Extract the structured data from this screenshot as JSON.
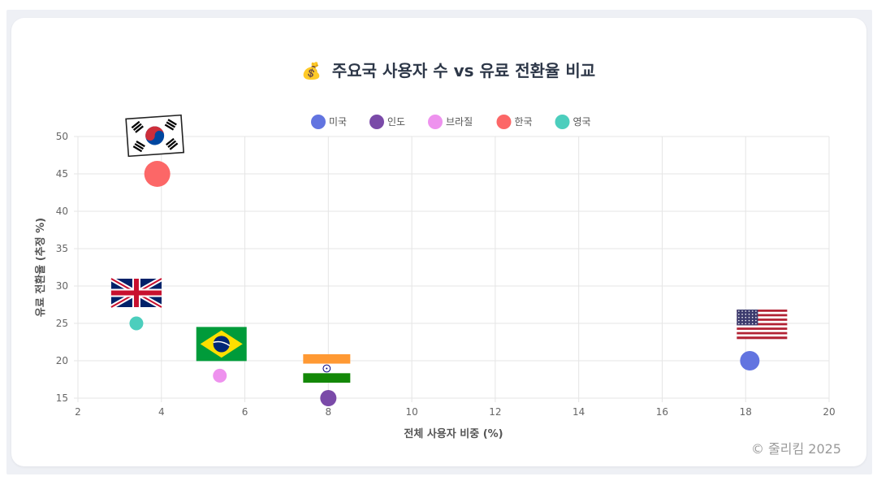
{
  "chart_data": {
    "type": "scatter",
    "title": "주요국 사용자 수 vs 유료 전환율 비교",
    "title_icon": "💰",
    "xlabel": "전체 사용자 비중 (%)",
    "ylabel": "유료 전환율 (추정 %)",
    "xlim": [
      2,
      20
    ],
    "ylim": [
      15,
      50
    ],
    "x_ticks": [
      2,
      4,
      6,
      8,
      10,
      12,
      14,
      16,
      18,
      20
    ],
    "y_ticks": [
      15,
      20,
      25,
      30,
      35,
      40,
      45,
      50
    ],
    "grid": true,
    "legend_position": "top-center",
    "series": [
      {
        "name": "미국",
        "color": "#6274e0",
        "x": 18.1,
        "y": 20,
        "flag": "us-flag-icon"
      },
      {
        "name": "인도",
        "color": "#7a4aa8",
        "x": 8.0,
        "y": 15,
        "flag": "india-flag-icon"
      },
      {
        "name": "브라질",
        "color": "#ee92ee",
        "x": 5.4,
        "y": 18,
        "flag": "brazil-flag-icon"
      },
      {
        "name": "한국",
        "color": "#fc6767",
        "x": 3.9,
        "y": 45,
        "flag": "korea-flag-icon"
      },
      {
        "name": "영국",
        "color": "#4ccebd",
        "x": 3.4,
        "y": 25,
        "flag": "uk-flag-icon"
      }
    ]
  },
  "watermark": "© 줄리킴 2025"
}
